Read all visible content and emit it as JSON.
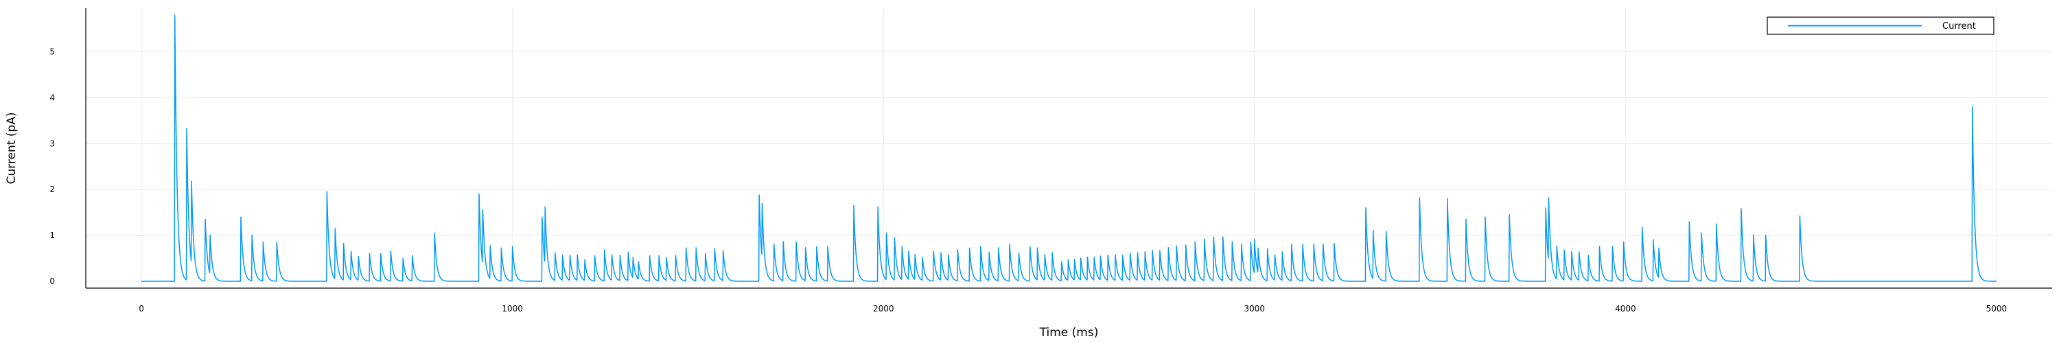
{
  "chart_data": {
    "type": "line",
    "title": "",
    "xlabel": "Time (ms)",
    "ylabel": "Current (pA)",
    "xlim": [
      -150,
      5150
    ],
    "ylim": [
      -0.15,
      5.95
    ],
    "xticks": [
      0,
      1000,
      2000,
      3000,
      4000,
      5000
    ],
    "xtick_labels": [
      "0",
      "1000",
      "2000",
      "3000",
      "4000",
      "5000"
    ],
    "yticks": [
      0,
      1,
      2,
      3,
      4,
      5
    ],
    "ytick_labels": [
      "0",
      "1",
      "2",
      "3",
      "4",
      "5"
    ],
    "grid": true,
    "legend_position": "top-right",
    "colors": {
      "series": "#009AFA",
      "grid": "#EBEBEB",
      "axis": "#000000"
    },
    "series": [
      {
        "name": "Current",
        "baseline": 0.0,
        "spike_decay_ms": 6,
        "spikes": [
          [
            90,
            5.8
          ],
          [
            122,
            3.3
          ],
          [
            135,
            1.8
          ],
          [
            172,
            1.35
          ],
          [
            185,
            0.85
          ],
          [
            268,
            1.4
          ],
          [
            298,
            1.0
          ],
          [
            328,
            0.85
          ],
          [
            365,
            0.85
          ],
          [
            500,
            1.95
          ],
          [
            522,
            1.1
          ],
          [
            545,
            0.8
          ],
          [
            565,
            0.62
          ],
          [
            585,
            0.52
          ],
          [
            615,
            0.6
          ],
          [
            645,
            0.6
          ],
          [
            672,
            0.65
          ],
          [
            705,
            0.5
          ],
          [
            730,
            0.55
          ],
          [
            790,
            1.05
          ],
          [
            910,
            1.9
          ],
          [
            920,
            1.2
          ],
          [
            940,
            0.72
          ],
          [
            970,
            0.72
          ],
          [
            1000,
            0.75
          ],
          [
            1080,
            1.4
          ],
          [
            1088,
            1.25
          ],
          [
            1115,
            0.6
          ],
          [
            1135,
            0.55
          ],
          [
            1155,
            0.55
          ],
          [
            1175,
            0.55
          ],
          [
            1195,
            0.45
          ],
          [
            1222,
            0.55
          ],
          [
            1248,
            0.68
          ],
          [
            1268,
            0.55
          ],
          [
            1290,
            0.55
          ],
          [
            1312,
            0.62
          ],
          [
            1325,
            0.45
          ],
          [
            1340,
            0.38
          ],
          [
            1370,
            0.55
          ],
          [
            1395,
            0.55
          ],
          [
            1415,
            0.5
          ],
          [
            1440,
            0.55
          ],
          [
            1468,
            0.72
          ],
          [
            1495,
            0.72
          ],
          [
            1520,
            0.6
          ],
          [
            1545,
            0.7
          ],
          [
            1568,
            0.65
          ],
          [
            1665,
            1.88
          ],
          [
            1673,
            1.2
          ],
          [
            1705,
            0.8
          ],
          [
            1730,
            0.85
          ],
          [
            1765,
            0.85
          ],
          [
            1790,
            0.72
          ],
          [
            1820,
            0.75
          ],
          [
            1850,
            0.75
          ],
          [
            1920,
            1.65
          ],
          [
            1985,
            1.62
          ],
          [
            2008,
            1.02
          ],
          [
            2030,
            0.92
          ],
          [
            2050,
            0.72
          ],
          [
            2068,
            0.62
          ],
          [
            2085,
            0.55
          ],
          [
            2105,
            0.5
          ],
          [
            2135,
            0.65
          ],
          [
            2155,
            0.6
          ],
          [
            2175,
            0.55
          ],
          [
            2200,
            0.68
          ],
          [
            2232,
            0.72
          ],
          [
            2262,
            0.75
          ],
          [
            2285,
            0.62
          ],
          [
            2310,
            0.72
          ],
          [
            2340,
            0.8
          ],
          [
            2365,
            0.6
          ],
          [
            2395,
            0.75
          ],
          [
            2415,
            0.7
          ],
          [
            2435,
            0.55
          ],
          [
            2455,
            0.6
          ],
          [
            2480,
            0.42
          ],
          [
            2498,
            0.45
          ],
          [
            2515,
            0.45
          ],
          [
            2532,
            0.48
          ],
          [
            2550,
            0.5
          ],
          [
            2568,
            0.5
          ],
          [
            2585,
            0.52
          ],
          [
            2605,
            0.55
          ],
          [
            2625,
            0.55
          ],
          [
            2645,
            0.55
          ],
          [
            2665,
            0.6
          ],
          [
            2685,
            0.6
          ],
          [
            2705,
            0.62
          ],
          [
            2725,
            0.65
          ],
          [
            2745,
            0.65
          ],
          [
            2768,
            0.72
          ],
          [
            2790,
            0.75
          ],
          [
            2815,
            0.78
          ],
          [
            2840,
            0.85
          ],
          [
            2865,
            0.9
          ],
          [
            2890,
            0.95
          ],
          [
            2915,
            0.95
          ],
          [
            2940,
            0.85
          ],
          [
            2965,
            0.8
          ],
          [
            2990,
            0.85
          ],
          [
            3000,
            0.75
          ],
          [
            3010,
            0.55
          ],
          [
            3035,
            0.7
          ],
          [
            3055,
            0.55
          ],
          [
            3075,
            0.62
          ],
          [
            3100,
            0.8
          ],
          [
            3130,
            0.8
          ],
          [
            3160,
            0.8
          ],
          [
            3185,
            0.8
          ],
          [
            3215,
            0.82
          ],
          [
            3300,
            1.6
          ],
          [
            3320,
            1.05
          ],
          [
            3355,
            1.08
          ],
          [
            3445,
            1.82
          ],
          [
            3520,
            1.8
          ],
          [
            3570,
            1.35
          ],
          [
            3622,
            1.4
          ],
          [
            3687,
            1.45
          ],
          [
            3785,
            1.6
          ],
          [
            3793,
            1.4
          ],
          [
            3815,
            0.72
          ],
          [
            3835,
            0.65
          ],
          [
            3855,
            0.62
          ],
          [
            3875,
            0.62
          ],
          [
            3900,
            0.55
          ],
          [
            3930,
            0.75
          ],
          [
            3965,
            0.75
          ],
          [
            3995,
            0.85
          ],
          [
            4045,
            1.18
          ],
          [
            4075,
            0.9
          ],
          [
            4090,
            0.65
          ],
          [
            4172,
            1.3
          ],
          [
            4205,
            1.05
          ],
          [
            4245,
            1.25
          ],
          [
            4312,
            1.58
          ],
          [
            4345,
            1.0
          ],
          [
            4378,
            1.0
          ],
          [
            4470,
            1.42
          ],
          [
            4935,
            3.8
          ]
        ]
      }
    ]
  }
}
